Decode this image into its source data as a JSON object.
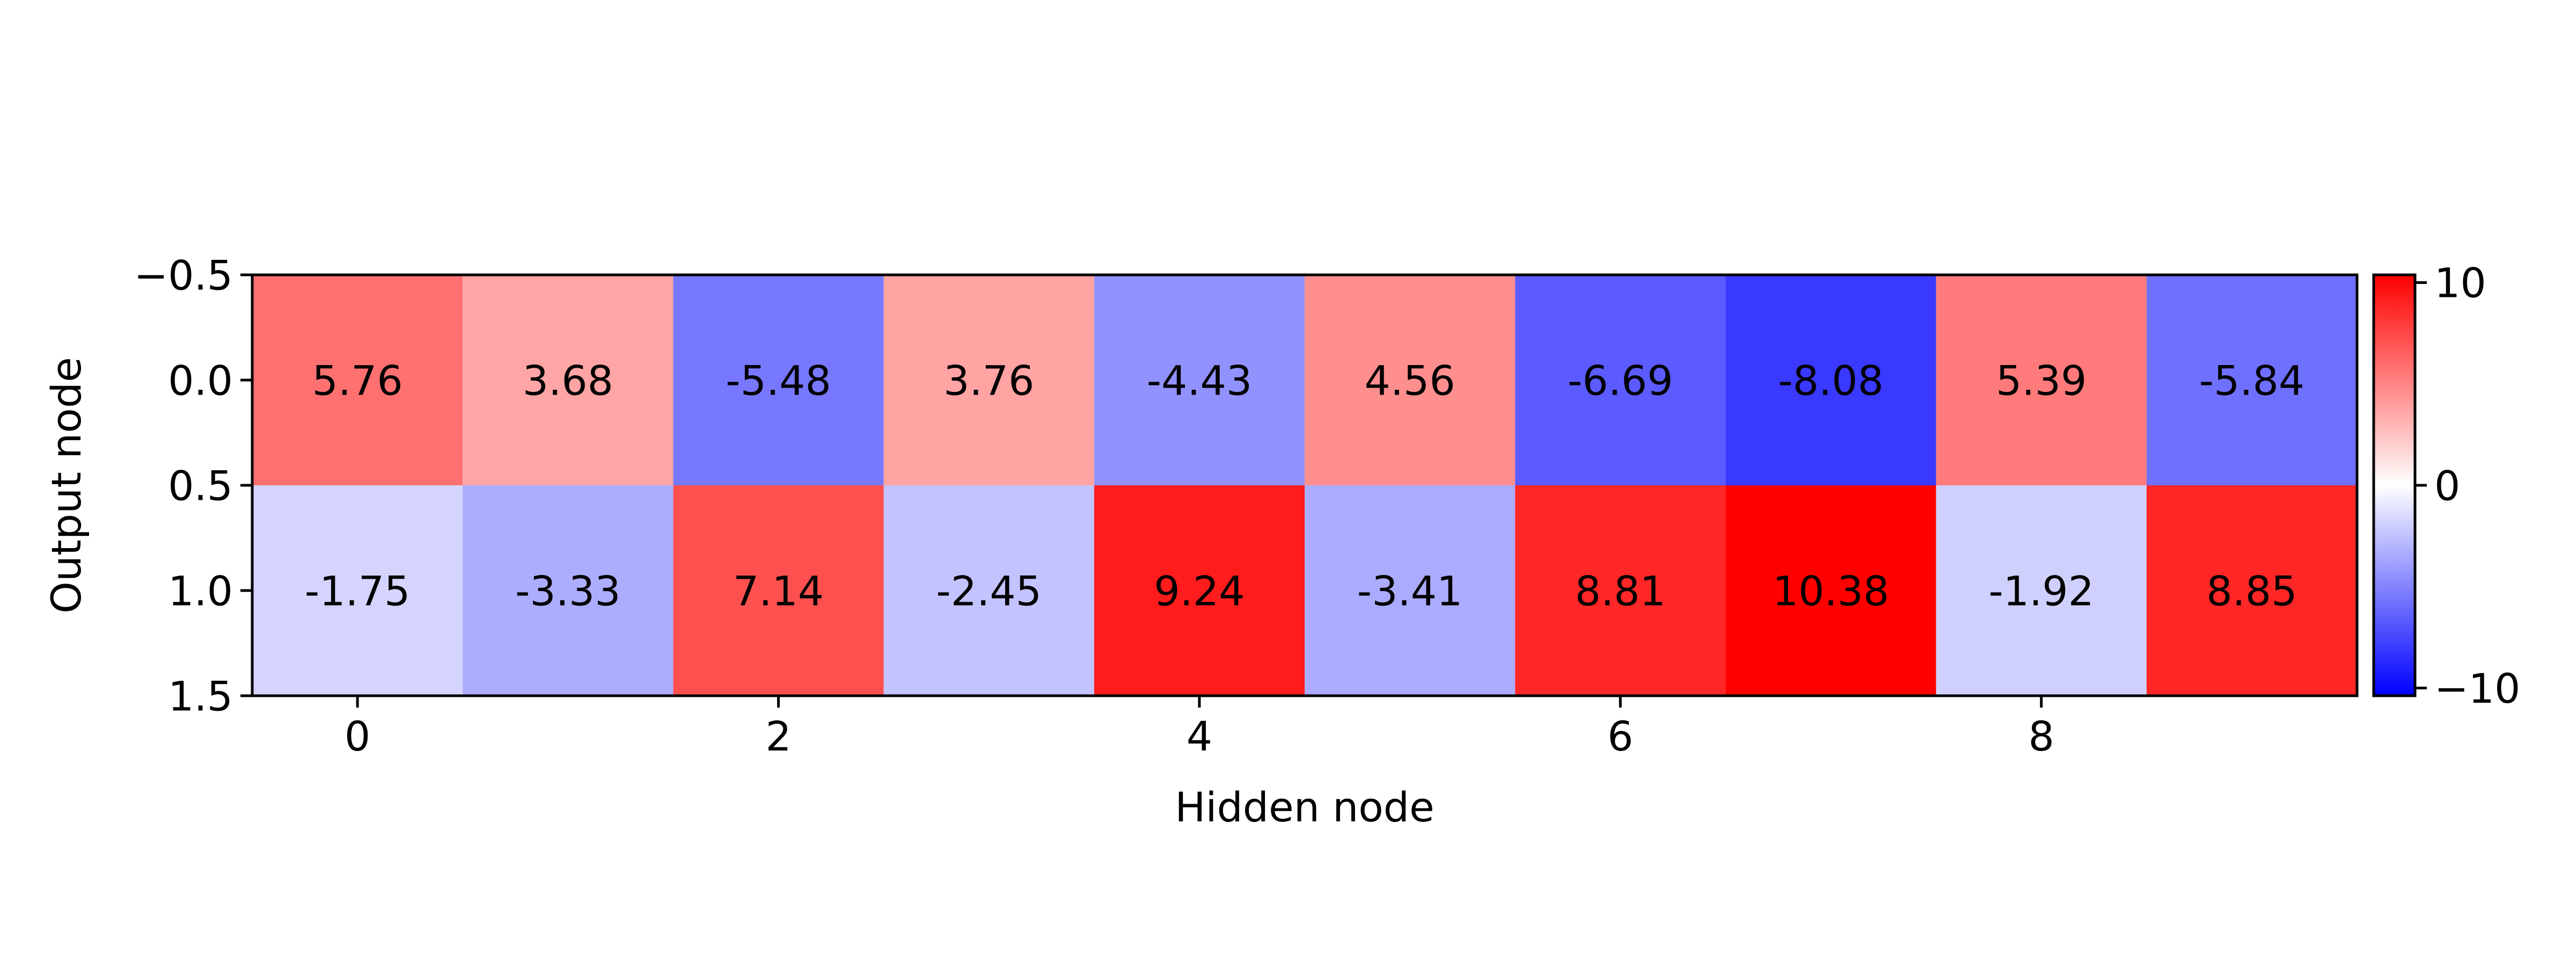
{
  "chart_data": {
    "type": "heatmap",
    "title": "",
    "xlabel": "Hidden node",
    "ylabel": "Output node",
    "x_categories": [
      0,
      1,
      2,
      3,
      4,
      5,
      6,
      7,
      8,
      9
    ],
    "y_categories": [
      0,
      1
    ],
    "values": [
      [
        5.76,
        3.68,
        -5.48,
        3.76,
        -4.43,
        4.56,
        -6.69,
        -8.08,
        5.39,
        -5.84
      ],
      [
        -1.75,
        -3.33,
        7.14,
        -2.45,
        9.24,
        -3.41,
        8.81,
        10.38,
        -1.92,
        8.85
      ]
    ],
    "value_labels": [
      [
        "5.76",
        "3.68",
        "-5.48",
        "3.76",
        "-4.43",
        "4.56",
        "-6.69",
        "-8.08",
        "5.39",
        "-5.84"
      ],
      [
        "-1.75",
        "-3.33",
        "7.14",
        "-2.45",
        "9.24",
        "-3.41",
        "8.81",
        "10.38",
        "-1.92",
        "8.85"
      ]
    ],
    "xlim": [
      -0.5,
      9.5
    ],
    "ylim": [
      1.5,
      -0.5
    ],
    "x_ticks": [
      0,
      2,
      4,
      6,
      8
    ],
    "x_tick_labels": [
      "0",
      "2",
      "4",
      "6",
      "8"
    ],
    "y_ticks": [
      -0.5,
      0.0,
      0.5,
      1.0,
      1.5
    ],
    "y_tick_labels": [
      "−0.5",
      "0.0",
      "0.5",
      "1.0",
      "1.5"
    ],
    "colormap": "bwr",
    "colormap_colors": {
      "low": "#0000ff",
      "mid": "#ffffff",
      "high": "#ff0000"
    },
    "color_range": [
      -10.38,
      10.38
    ],
    "colorbar": {
      "ticks": [
        10,
        0,
        -10
      ],
      "tick_labels": [
        "10",
        "0",
        "−10"
      ],
      "placement": "right"
    },
    "grid": false
  }
}
